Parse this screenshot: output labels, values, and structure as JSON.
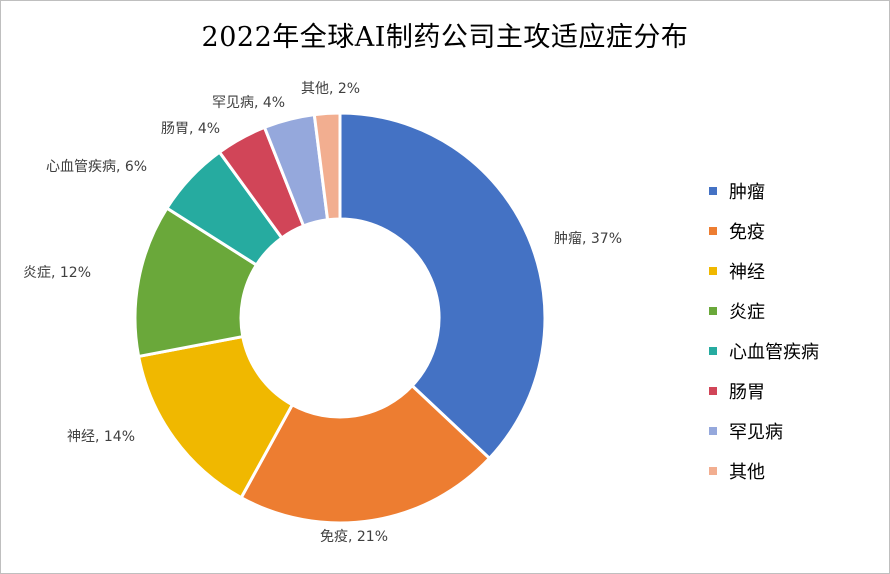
{
  "chart_data": {
    "type": "pie",
    "title": "2022年全球AI制药公司主攻适应症分布",
    "legend_position": "right",
    "categories": [
      "肿瘤",
      "免疫",
      "神经",
      "炎症",
      "心血管疾病",
      "肠胃",
      "罕见病",
      "其他"
    ],
    "values": [
      37,
      21,
      14,
      12,
      6,
      4,
      4,
      2
    ],
    "data_labels": [
      "肿瘤, 37%",
      "免疫, 21%",
      "神经, 14%",
      "炎症, 12%",
      "心血管疾病, 6%",
      "肠胃, 4%",
      "罕见病, 4%",
      "其他, 2%"
    ],
    "colors": [
      "#4472C4",
      "#ED7D31",
      "#F0B800",
      "#6AA83A",
      "#26ABA0",
      "#D14558",
      "#95A8DC",
      "#F2AE90"
    ]
  }
}
